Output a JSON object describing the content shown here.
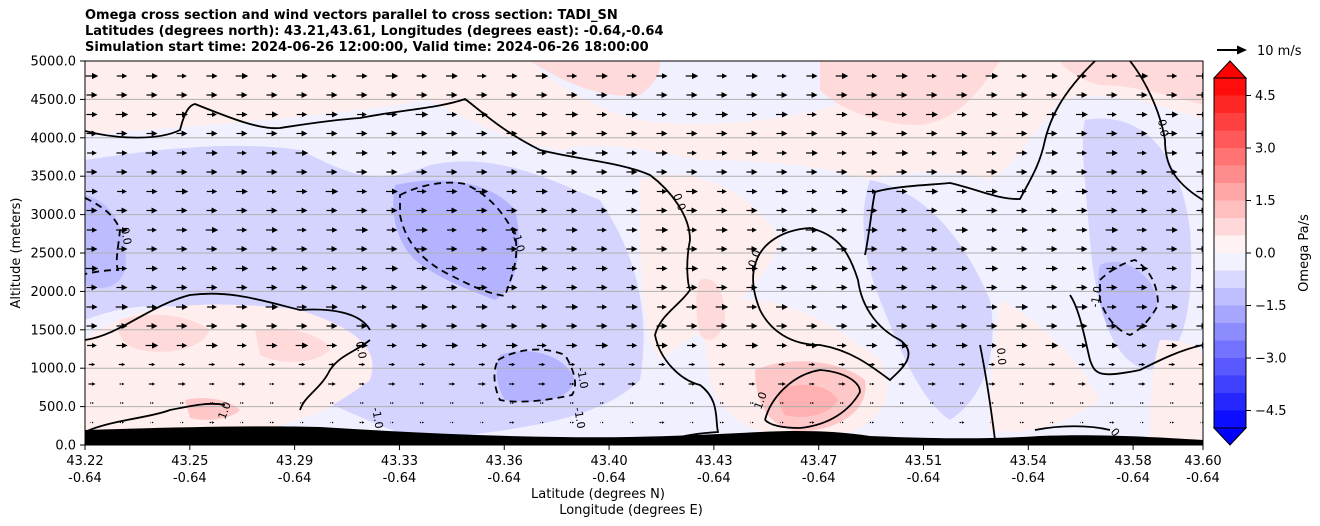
{
  "title_lines": [
    "Omega cross section and wind vectors parallel to cross section: TADI_SN",
    "Latitudes (degrees north): 43.21,43.61, Longitudes (degrees east): -0.64,-0.64",
    "Simulation start time: 2024-06-26 12:00:00, Valid time: 2024-06-26 18:00:00"
  ],
  "chart_data": {
    "type": "contour",
    "title": "Omega cross section and wind vectors parallel to cross section: TADI_SN",
    "ylabel": "Altitude (meters)",
    "xlabel_lat": "Latitude (degrees N)",
    "xlabel_lon": "Longitude (degrees E)",
    "ylim": [
      0,
      5000
    ],
    "y_ticks": [
      "0.0",
      "500.0",
      "1000.0",
      "1500.0",
      "2000.0",
      "2500.0",
      "3000.0",
      "3500.0",
      "4000.0",
      "4500.0",
      "5000.0"
    ],
    "x_ticks_lat": [
      "43.22",
      "43.25",
      "43.29",
      "43.33",
      "43.36",
      "43.40",
      "43.43",
      "43.47",
      "43.51",
      "43.54",
      "43.58",
      "43.60"
    ],
    "x_ticks_lon": [
      "-0.64",
      "-0.64",
      "-0.64",
      "-0.64",
      "-0.64",
      "-0.64",
      "-0.64",
      "-0.64",
      "-0.64",
      "-0.64",
      "-0.64",
      "-0.64"
    ],
    "grid": "horizontal",
    "colorbar": {
      "label": "Omega Pa/s",
      "range": [
        -5,
        5
      ],
      "ticks": [
        "4.5",
        "3.0",
        "1.5",
        "0.0",
        "−1.5",
        "−3.0",
        "−4.5"
      ],
      "colormap": "bwr"
    },
    "contour_levels": [
      -1.0,
      0.0,
      1.0
    ],
    "contour_labels": [
      "1.0",
      "0.0",
      "-1.0",
      "0.0",
      "-1.0",
      "0.0",
      "0.0",
      "-1.0",
      "0.0",
      "1.0",
      "-1.0",
      "1.0",
      "-1.0",
      "-1.0",
      "0.0",
      "0.0",
      "0",
      "1.0"
    ],
    "wind_vectors": {
      "direction": "parallel to cross section, northward",
      "reference_label": "10 m/s"
    },
    "terrain": "black, heights ~100-250 m"
  }
}
